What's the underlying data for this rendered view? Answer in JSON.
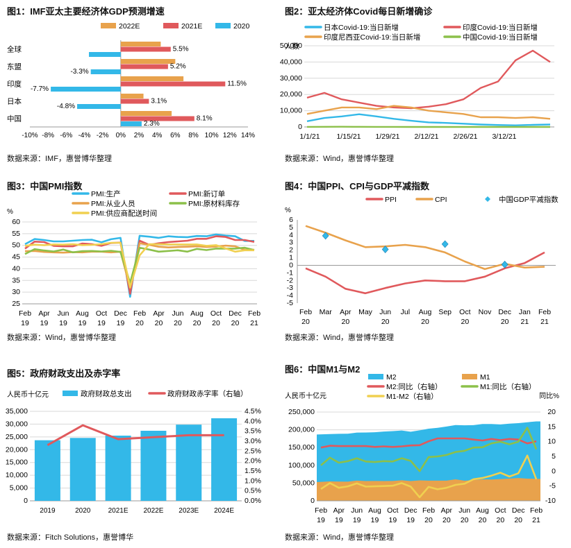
{
  "colors": {
    "c2022": "#E8A24C",
    "c2021": "#E0595C",
    "c2020": "#33B8E8",
    "ppi": "#E0595C",
    "cpi": "#E8A24C",
    "gdp": "#33B8E8",
    "m2": "#33B8E8",
    "m1": "#E8A24C",
    "m2yoy": "#E0595C",
    "m1yoy": "#8CC04A",
    "m1m2": "#F0D050",
    "axis": "#999999",
    "grid": "#d8d8d8"
  },
  "panels": {
    "p1": {
      "title": "图1：IMF亚太主要经济体GDP预测增速",
      "source": "数据来源：IMF，惠誉博华整理"
    },
    "p2": {
      "title": "图2：亚太经济体Covid每日新增确诊",
      "source": "数据来源：Wind，惠誉博华整理"
    },
    "p3": {
      "title": "图3：中国PMI指数",
      "source": "数据来源：Wind，惠誉博华整理"
    },
    "p4": {
      "title": "图4：中国PPI、CPI与GDP平减指数",
      "source": "数据来源：Wind，惠誉博华整理"
    },
    "p5": {
      "title": "图5：政府财政支出及赤字率",
      "source": "数据来源：Fitch Solutions，惠誉博华"
    },
    "p6": {
      "title": "图6：中国M1与M2",
      "source": "数据来源：Wind，惠誉博华整理"
    }
  },
  "chart_data": [
    {
      "id": "c1",
      "type": "bar",
      "orientation": "horizontal",
      "categories": [
        "全球",
        "东盟",
        "印度",
        "日本",
        "中国"
      ],
      "series": [
        {
          "name": "2022E",
          "values": [
            4.4,
            6.0,
            6.9,
            2.5,
            5.6
          ]
        },
        {
          "name": "2021E",
          "values": [
            5.5,
            5.2,
            11.5,
            3.1,
            8.1
          ]
        },
        {
          "name": "2020",
          "values": [
            -3.5,
            -3.3,
            -7.7,
            -4.8,
            2.3
          ]
        }
      ],
      "data_labels": [
        {
          "cat": "全球",
          "text": "5.5%"
        },
        {
          "cat": "东盟",
          "text": "5.2%"
        },
        {
          "cat": "东盟",
          "text": "-3.3%"
        },
        {
          "cat": "印度",
          "text": "11.5%"
        },
        {
          "cat": "印度",
          "text": "-7.7%"
        },
        {
          "cat": "日本",
          "text": "3.1%"
        },
        {
          "cat": "日本",
          "text": "-4.8%"
        },
        {
          "cat": "中国",
          "text": "8.1%"
        },
        {
          "cat": "中国",
          "text": "2.3%"
        }
      ],
      "xlim": [
        -10,
        14
      ],
      "xticks": [
        "-10%",
        "-8%",
        "-6%",
        "-4%",
        "-2%",
        "0%",
        "2%",
        "4%",
        "6%",
        "8%",
        "10%",
        "12%",
        "14%"
      ],
      "legend": "top"
    },
    {
      "id": "c2",
      "type": "line",
      "ylabel": "人数",
      "ylim": [
        0,
        50000
      ],
      "yticks": [
        "0",
        "10,000",
        "20,000",
        "30,000",
        "40,000",
        "50,000"
      ],
      "xticks": [
        "1/1/21",
        "1/15/21",
        "1/29/21",
        "2/12/21",
        "2/26/21",
        "3/12/21"
      ],
      "x_range": [
        "1/1/21",
        "4/1/21"
      ],
      "series": [
        {
          "name": "日本Covid-19:当日新增",
          "values": [
            3500,
            5500,
            6500,
            7800,
            6500,
            5000,
            3800,
            2800,
            2500,
            2000,
            1500,
            1200,
            1000,
            1300,
            1500
          ]
        },
        {
          "name": "印度Covid-19:当日新增",
          "values": [
            18000,
            21000,
            17000,
            15000,
            13000,
            12000,
            11500,
            12500,
            14000,
            17000,
            24000,
            28000,
            41000,
            47000,
            40000
          ]
        },
        {
          "name": "印度尼西亚Covid-19:当日新增",
          "values": [
            8000,
            10000,
            12000,
            12000,
            11000,
            13000,
            12000,
            10000,
            9000,
            8000,
            6000,
            6000,
            5500,
            6000,
            5000
          ]
        },
        {
          "name": "中国Covid-19:当日新增",
          "values": [
            50,
            100,
            120,
            100,
            50,
            30,
            20,
            10,
            10,
            10,
            10,
            10,
            10,
            10,
            10
          ]
        }
      ],
      "legend": "top"
    },
    {
      "id": "c3",
      "type": "line",
      "ylabel": "%",
      "ylim": [
        25,
        60
      ],
      "yticks": [
        "25",
        "30",
        "35",
        "40",
        "45",
        "50",
        "55",
        "60"
      ],
      "xticks": [
        "Feb 19",
        "Apr 19",
        "Jun 19",
        "Aug 19",
        "Oct 19",
        "Dec 19",
        "Feb 20",
        "Apr 20",
        "Jun 20",
        "Aug 20",
        "Oct 20",
        "Dec 20",
        "Feb 21"
      ],
      "series": [
        {
          "name": "PMI:生产",
          "values": [
            50.5,
            52.7,
            52.3,
            51.7,
            51.7,
            52.0,
            52.3,
            52.4,
            51.3,
            52.6,
            53.2,
            28.0,
            54.1,
            53.7,
            53.2,
            53.9,
            53.6,
            53.5,
            54.0,
            53.9,
            54.7,
            54.2,
            53.9,
            51.9,
            51.9
          ]
        },
        {
          "name": "PMI:新订单",
          "values": [
            48.6,
            51.6,
            51.4,
            49.8,
            49.6,
            49.6,
            50.8,
            50.5,
            49.8,
            51.0,
            51.2,
            29.3,
            52.0,
            50.2,
            50.9,
            51.4,
            51.7,
            52.0,
            52.8,
            52.8,
            53.9,
            53.6,
            52.3,
            52.3,
            51.5
          ]
        },
        {
          "name": "PMI:从业人员",
          "values": [
            47.5,
            47.6,
            47.2,
            47.0,
            46.9,
            47.1,
            47.0,
            47.3,
            47.3,
            47.0,
            47.3,
            31.8,
            50.9,
            50.2,
            49.4,
            49.1,
            49.3,
            49.4,
            49.6,
            49.3,
            49.5,
            49.9,
            49.6,
            48.1,
            48.1
          ]
        },
        {
          "name": "PMI:原材料库存",
          "values": [
            46.3,
            48.4,
            47.8,
            47.4,
            48.2,
            47.0,
            47.5,
            47.6,
            47.4,
            47.7,
            47.2,
            33.9,
            49.0,
            48.2,
            47.3,
            47.6,
            47.9,
            47.3,
            48.5,
            48.0,
            48.6,
            48.6,
            48.6,
            49.0,
            48.0
          ]
        },
        {
          "name": "PMI:供应商配送时间",
          "values": [
            49.8,
            50.3,
            50.1,
            50.4,
            50.3,
            50.5,
            50.1,
            50.2,
            50.5,
            51.1,
            51.1,
            32.1,
            45.7,
            50.5,
            50.5,
            50.4,
            50.4,
            50.4,
            50.4,
            49.8,
            50.1,
            48.7,
            47.3,
            47.9,
            47.9
          ]
        }
      ],
      "legend": "top"
    },
    {
      "id": "c4",
      "type": "line",
      "ylabel": "%",
      "ylim": [
        -5,
        6
      ],
      "yticks": [
        "-5",
        "-4",
        "-3",
        "-2",
        "-1",
        "0",
        "1",
        "2",
        "3",
        "4",
        "5",
        "6"
      ],
      "xticks": [
        "Feb 20",
        "Mar 20",
        "Apr 20",
        "May 20",
        "Jun 20",
        "Jul 20",
        "Aug 20",
        "Sep 20",
        "Oct 20",
        "Nov 20",
        "Dec 20",
        "Jan 21",
        "Feb 21"
      ],
      "series": [
        {
          "name": "PPI",
          "values": [
            -0.4,
            -1.5,
            -3.1,
            -3.7,
            -3.0,
            -2.4,
            -2.0,
            -2.1,
            -2.1,
            -1.5,
            -0.4,
            0.3,
            1.7
          ]
        },
        {
          "name": "CPI",
          "values": [
            5.2,
            4.3,
            3.3,
            2.4,
            2.5,
            2.7,
            2.4,
            1.7,
            0.5,
            -0.5,
            0.2,
            -0.3,
            -0.2
          ]
        },
        {
          "name": "中国GDP平减指数",
          "points": [
            {
              "x": "Mar 20",
              "y": 3.9
            },
            {
              "x": "Jun 20",
              "y": 2.1
            },
            {
              "x": "Sep 20",
              "y": 2.8
            },
            {
              "x": "Dec 20",
              "y": 0.1
            }
          ]
        }
      ],
      "legend": "top"
    },
    {
      "id": "c5",
      "type": "bar+line",
      "ylabel": "人民币十亿元",
      "categories": [
        "2019",
        "2020",
        "2021E",
        "2022E",
        "2023E",
        "2024E"
      ],
      "ylim": [
        0,
        35000
      ],
      "yticks": [
        "0",
        "5,000",
        "10,000",
        "15,000",
        "20,000",
        "25,000",
        "30,000",
        "35,000"
      ],
      "y2lim": [
        0,
        4.5
      ],
      "y2ticks": [
        "0.0%",
        "0.5%",
        "1.0%",
        "1.5%",
        "2.0%",
        "2.5%",
        "3.0%",
        "3.5%",
        "4.0%",
        "4.5%"
      ],
      "series": [
        {
          "name": "政府财政总支出",
          "values": [
            23700,
            24600,
            25500,
            27400,
            29800,
            32300
          ]
        },
        {
          "name": "政府财政赤字率（右轴）",
          "values": [
            2.8,
            3.8,
            3.1,
            3.2,
            3.3,
            3.3
          ]
        }
      ],
      "legend": "top"
    },
    {
      "id": "c6",
      "type": "area+line",
      "ylabel": "人民币十亿元",
      "y2label": "同比%",
      "ylim": [
        0,
        250000
      ],
      "yticks": [
        "0",
        "50,000",
        "100,000",
        "150,000",
        "200,000",
        "250,000"
      ],
      "y2lim": [
        -10,
        20
      ],
      "y2ticks": [
        "-10",
        "-5",
        "0",
        "5",
        "10",
        "15",
        "20"
      ],
      "xticks": [
        "Feb 19",
        "Apr 19",
        "Jun 19",
        "Aug 19",
        "Oct 19",
        "Dec 19",
        "Feb 20",
        "Apr 20",
        "Jun 20",
        "Aug 20",
        "Oct 20",
        "Dec 20",
        "Feb 21"
      ],
      "series": [
        {
          "name": "M2",
          "values": [
            186700,
            188000,
            188600,
            189000,
            192100,
            192500,
            193000,
            195000,
            196300,
            198000,
            194600,
            198600,
            203100,
            205600,
            209300,
            213500,
            212600,
            213100,
            216400,
            216300,
            215000,
            217200,
            218700,
            221300,
            223600
          ]
        },
        {
          "name": "M1",
          "values": [
            52700,
            54700,
            54200,
            54000,
            56800,
            55700,
            55800,
            55700,
            55900,
            57800,
            55700,
            57600,
            57000,
            57000,
            56900,
            60500,
            56700,
            58300,
            60400,
            60000,
            61200,
            62500,
            64200,
            62600,
            61700
          ]
        },
        {
          "name": "M2:同比（右轴）",
          "values": [
            8.0,
            8.6,
            8.5,
            8.5,
            8.5,
            8.5,
            8.2,
            8.4,
            8.2,
            8.4,
            8.7,
            8.8,
            10.1,
            11.1,
            11.1,
            11.1,
            11.1,
            10.7,
            10.4,
            10.9,
            10.5,
            10.9,
            10.7,
            9.4,
            10.1
          ]
        },
        {
          "name": "M1:同比（右轴）",
          "values": [
            2.0,
            4.6,
            2.9,
            3.4,
            4.4,
            3.3,
            3.1,
            3.4,
            3.3,
            4.4,
            3.5,
            0.0,
            4.8,
            5.0,
            5.5,
            6.5,
            6.9,
            8.0,
            8.1,
            9.4,
            10.0,
            9.1,
            10.0,
            14.7,
            7.4
          ]
        },
        {
          "name": "M1-M2（右轴）",
          "values": [
            -6.0,
            -4.0,
            -5.6,
            -5.1,
            -4.1,
            -5.2,
            -5.1,
            -5.0,
            -4.9,
            -4.0,
            -5.2,
            -8.8,
            -5.3,
            -6.1,
            -5.6,
            -4.6,
            -4.2,
            -2.7,
            -2.3,
            -1.5,
            -0.5,
            -1.8,
            -0.7,
            5.3,
            -2.7
          ]
        }
      ],
      "legend": "top"
    }
  ]
}
